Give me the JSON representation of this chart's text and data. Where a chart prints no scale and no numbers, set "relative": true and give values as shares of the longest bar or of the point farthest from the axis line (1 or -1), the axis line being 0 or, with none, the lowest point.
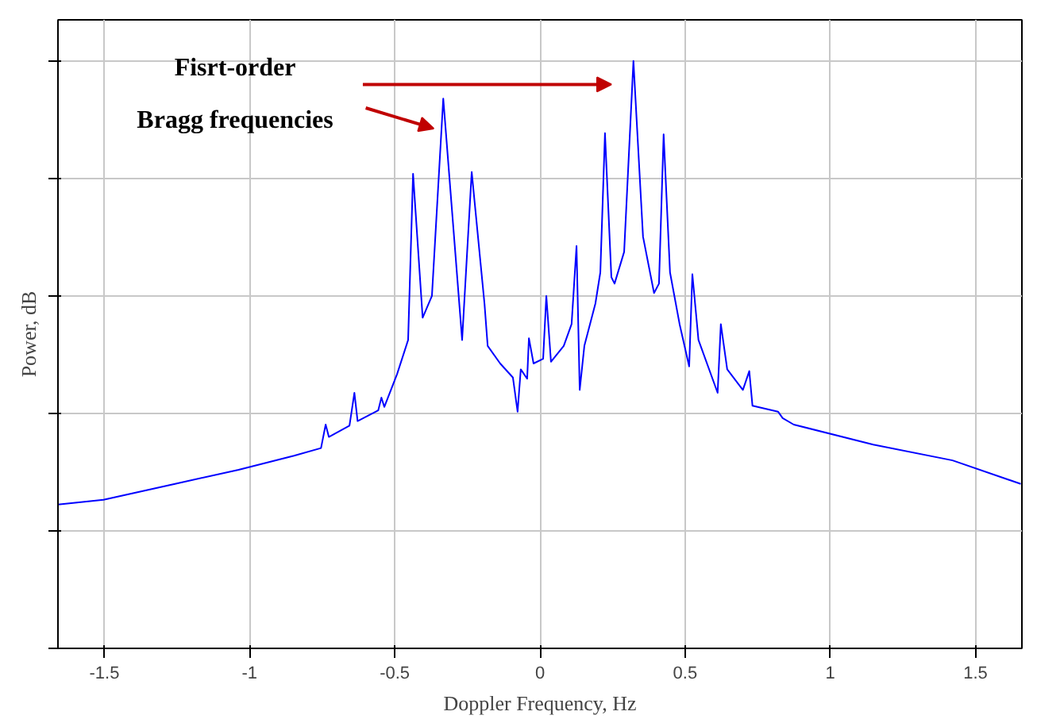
{
  "chart_data": {
    "type": "line",
    "relative": true,
    "xlabel": "Doppler Frequency, Hz",
    "ylabel": "Power, dB",
    "xlim": [
      -1.66,
      1.66
    ],
    "xticks": [
      -1.5,
      -1,
      -0.5,
      0,
      0.5,
      1,
      1.5
    ],
    "grid": true,
    "marker": "none",
    "line_style": "solid",
    "annotations": [
      "Fisrt-order",
      "Bragg frequencies"
    ],
    "series": [
      {
        "color": "#0000ff",
        "x": [
          -1.66,
          -1.503,
          -1.257,
          -1.038,
          -0.847,
          -0.754,
          -0.738,
          -0.727,
          -0.656,
          -0.639,
          -0.628,
          -0.557,
          -0.546,
          -0.536,
          -0.492,
          -0.454,
          -0.437,
          -0.404,
          -0.372,
          -0.333,
          -0.268,
          -0.235,
          -0.191,
          -0.18,
          -0.137,
          -0.093,
          -0.077,
          -0.066,
          -0.044,
          -0.038,
          -0.022,
          0.011,
          0.022,
          0.038,
          0.082,
          0.109,
          0.126,
          0.137,
          0.153,
          0.191,
          0.208,
          0.224,
          0.246,
          0.257,
          0.29,
          0.322,
          0.355,
          0.393,
          0.41,
          0.426,
          0.448,
          0.481,
          0.514,
          0.525,
          0.546,
          0.612,
          0.623,
          0.645,
          0.699,
          0.721,
          0.732,
          0.82,
          0.836,
          0.874,
          1.148,
          1.421,
          1.656
        ],
        "values": [
          0.245,
          0.253,
          0.28,
          0.304,
          0.328,
          0.341,
          0.381,
          0.36,
          0.379,
          0.435,
          0.387,
          0.405,
          0.427,
          0.411,
          0.467,
          0.525,
          0.808,
          0.563,
          0.6,
          0.936,
          0.525,
          0.811,
          0.587,
          0.515,
          0.485,
          0.461,
          0.403,
          0.475,
          0.459,
          0.528,
          0.485,
          0.493,
          0.6,
          0.488,
          0.515,
          0.552,
          0.685,
          0.44,
          0.515,
          0.587,
          0.64,
          0.877,
          0.632,
          0.621,
          0.675,
          1.0,
          0.701,
          0.605,
          0.621,
          0.875,
          0.64,
          0.552,
          0.48,
          0.637,
          0.525,
          0.435,
          0.552,
          0.475,
          0.44,
          0.472,
          0.413,
          0.403,
          0.392,
          0.381,
          0.347,
          0.32,
          0.28
        ]
      }
    ]
  }
}
